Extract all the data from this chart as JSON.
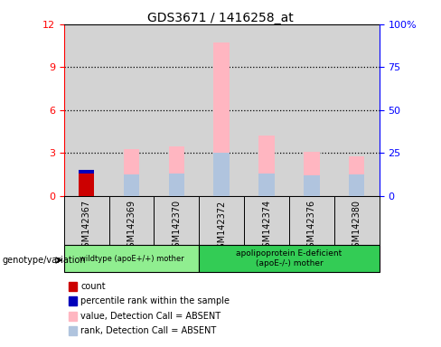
{
  "title": "GDS3671 / 1416258_at",
  "samples": [
    "GSM142367",
    "GSM142369",
    "GSM142370",
    "GSM142372",
    "GSM142374",
    "GSM142376",
    "GSM142380"
  ],
  "count": [
    1.55,
    0,
    0,
    0,
    0,
    0,
    0
  ],
  "percentile_rank": [
    0.28,
    0,
    0,
    0,
    0,
    0,
    0
  ],
  "value_absent": [
    0,
    3.3,
    3.5,
    10.7,
    4.2,
    3.1,
    2.8
  ],
  "rank_absent": [
    0,
    1.5,
    1.6,
    3.0,
    1.6,
    1.45,
    1.5
  ],
  "left_ylim": [
    0,
    12
  ],
  "left_yticks": [
    0,
    3,
    6,
    9,
    12
  ],
  "right_ytick_positions": [
    0,
    3,
    6,
    9,
    12
  ],
  "right_yticklabels": [
    "0",
    "25",
    "50",
    "75",
    "100%"
  ],
  "color_count": "#CC0000",
  "color_rank": "#0000BB",
  "color_value_absent": "#FFB6C1",
  "color_rank_absent": "#B0C4DE",
  "bar_width": 0.35,
  "group1_n": 3,
  "group2_n": 4,
  "group1_label": "wildtype (apoE+/+) mother",
  "group2_label": "apolipoprotein E-deficient\n(apoE-/-) mother",
  "group1_color": "#90EE90",
  "group2_color": "#33CC55",
  "legend_items": [
    {
      "color": "#CC0000",
      "label": "count"
    },
    {
      "color": "#0000BB",
      "label": "percentile rank within the sample"
    },
    {
      "color": "#FFB6C1",
      "label": "value, Detection Call = ABSENT"
    },
    {
      "color": "#B0C4DE",
      "label": "rank, Detection Call = ABSENT"
    }
  ]
}
